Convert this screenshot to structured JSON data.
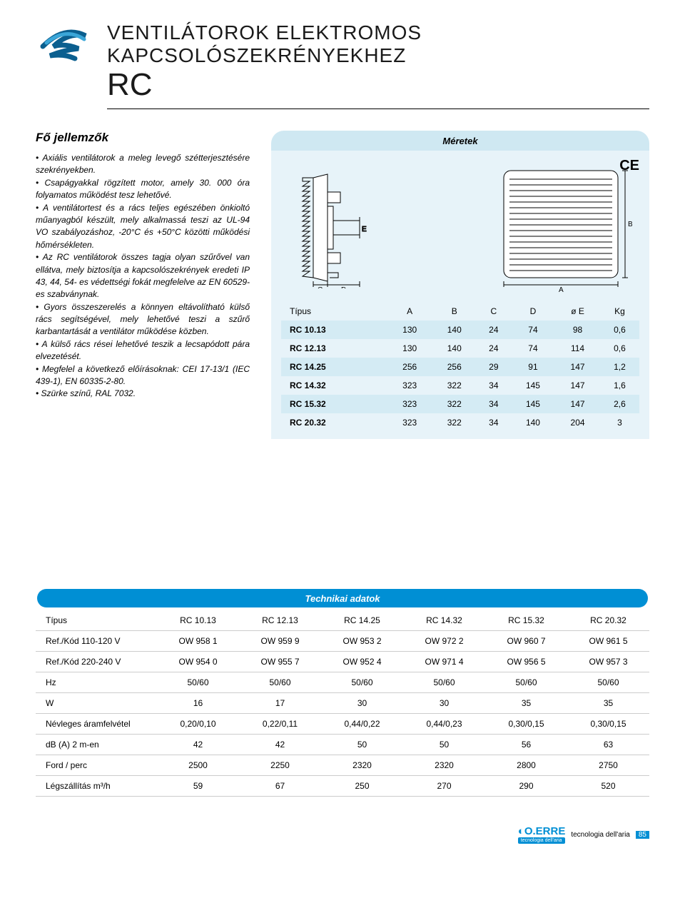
{
  "title_line1": "VENTILÁTOROK ELEKTROMOS KAPCSOLÓSZEKRÉNYEKHEZ",
  "title_line2": "RC",
  "features_heading": "Fő jellemzők",
  "features_text": "• Axiális ventilátorok a meleg levegő szétterjesztésére szekrényekben.\n• Csapágyakkal rögzített motor, amely 30. 000 óra folyamatos működést tesz lehetővé.\n• A ventilátortest és a rács teljes egészében önkioltó műanyagból készült, mely alkalmassá teszi az UL-94 VO szabályozáshoz, -20°C és +50°C közötti működési hőmérsékleten.\n• Az RC ventilátorok összes tagja olyan szűrővel van ellátva, mely biztosítja a kapcsolószekrények eredeti IP 43, 44, 54- es védettségi fokát megfelelve az EN 60529-es szabványnak.\n• Gyors összeszerelés a könnyen eltávolítható külső rács segítségével, mely lehetővé teszi a szűrő karbantartását a ventilátor működése közben.\n• A külső rács rései lehetővé teszik a lecsapódott pára elvezetését.\n• Megfelel a következő előírásoknak: CEI 17-13/1 (IEC 439-1), EN 60335-2-80.\n• Szürke színű, RAL 7032.",
  "dimensions": {
    "heading": "Méretek",
    "ce_mark": "CE",
    "diagram_labels": {
      "C": "C",
      "D": "D",
      "A": "A",
      "E": "E",
      "B": "B"
    },
    "columns": [
      "Típus",
      "A",
      "B",
      "C",
      "D",
      "ø E",
      "Kg"
    ],
    "rows": [
      [
        "RC 10.13",
        "130",
        "140",
        "24",
        "74",
        "98",
        "0,6"
      ],
      [
        "RC 12.13",
        "130",
        "140",
        "24",
        "74",
        "114",
        "0,6"
      ],
      [
        "RC 14.25",
        "256",
        "256",
        "29",
        "91",
        "147",
        "1,2"
      ],
      [
        "RC 14.32",
        "323",
        "322",
        "34",
        "145",
        "147",
        "1,6"
      ],
      [
        "RC 15.32",
        "323",
        "322",
        "34",
        "145",
        "147",
        "2,6"
      ],
      [
        "RC 20.32",
        "323",
        "322",
        "34",
        "140",
        "204",
        "3"
      ]
    ]
  },
  "tech": {
    "heading": "Technikai adatok",
    "col_models": [
      "RC 10.13",
      "RC 12.13",
      "RC 14.25",
      "RC 14.32",
      "RC 15.32",
      "RC 20.32"
    ],
    "row_labels": [
      "Típus",
      "Ref./Kód 110-120 V",
      "Ref./Kód 220-240 V",
      "Hz",
      "W",
      "Névleges áramfelvétel",
      "dB (A) 2 m-en",
      "Ford / perc",
      "Légszállítás m³/h"
    ],
    "rows": [
      [
        "OW 958 1",
        "OW 959 9",
        "OW 953 2",
        "OW 972 2",
        "OW 960 7",
        "OW 961 5"
      ],
      [
        "OW 954 0",
        "OW 955 7",
        "OW 952 4",
        "OW 971 4",
        "OW 956 5",
        "OW 957 3"
      ],
      [
        "50/60",
        "50/60",
        "50/60",
        "50/60",
        "50/60",
        "50/60"
      ],
      [
        "16",
        "17",
        "30",
        "30",
        "35",
        "35"
      ],
      [
        "0,20/0,10",
        "0,22/0,11",
        "0,44/0,22",
        "0,44/0,23",
        "0,30/0,15",
        "0,30/0,15"
      ],
      [
        "42",
        "42",
        "50",
        "50",
        "56",
        "63"
      ],
      [
        "2500",
        "2250",
        "2320",
        "2320",
        "2800",
        "2750"
      ],
      [
        "59",
        "67",
        "250",
        "270",
        "290",
        "520"
      ]
    ]
  },
  "footer": {
    "brand": "O.ERRE",
    "slogan": "tecnologia dell'aria",
    "tagline": "tecnologia dell'aria",
    "page": "85"
  },
  "colors": {
    "brand_blue": "#008fd4",
    "panel_light": "#e7f3f9",
    "panel_mid": "#d4ebf4",
    "pill_light": "#cfe8f2"
  }
}
